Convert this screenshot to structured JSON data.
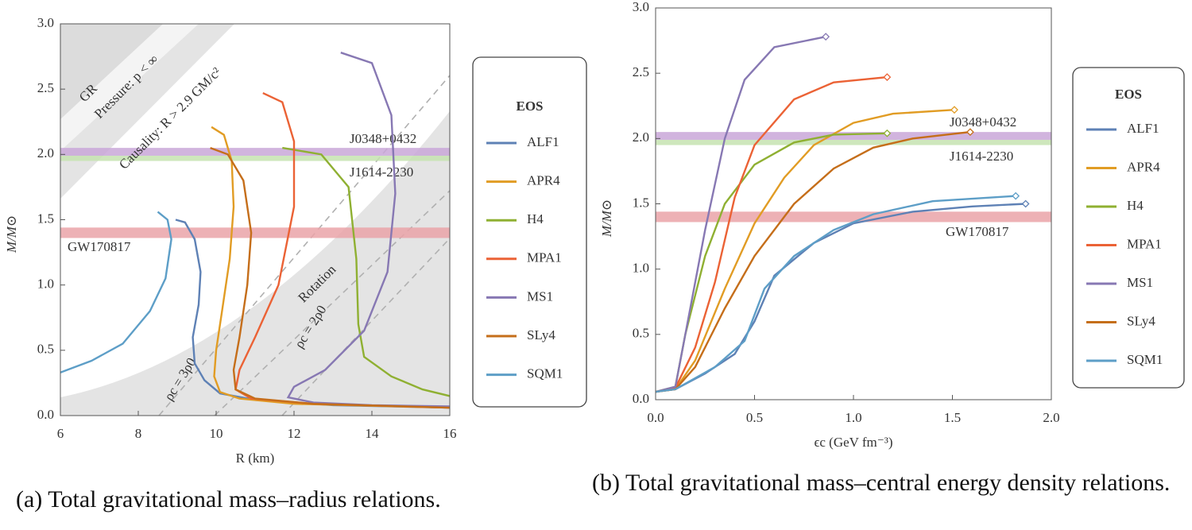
{
  "chart_data": [
    {
      "type": "line",
      "caption": "(a) Total gravitational mass–radius relations.",
      "xlabel": "R (km)",
      "ylabel": "M/M⊙",
      "xlim": [
        6,
        16
      ],
      "ylim": [
        0,
        3
      ],
      "xticks": [
        6,
        8,
        10,
        12,
        14,
        16
      ],
      "yticks": [
        {
          "value": 0,
          "label": "0.0"
        },
        0.5,
        {
          "value": 1,
          "label": "1.0"
        },
        1.5,
        {
          "value": 2,
          "label": "2.0"
        },
        2.5,
        {
          "value": 3,
          "label": "3.0"
        }
      ],
      "legend_title": "EOS",
      "bands": [
        {
          "label": "J0348+0432",
          "range": [
            1.99,
            2.05
          ],
          "color": "#c9a7d8"
        },
        {
          "label": "J1614-2230",
          "range": [
            1.95,
            1.99
          ],
          "color": "#c6e3b0"
        },
        {
          "label": "GW170817",
          "range": [
            1.36,
            1.44
          ],
          "color": "#eaa3a8"
        }
      ],
      "annotations": [
        "GR",
        "Pressure: p < ∞",
        "Causality: R > 2.9 GM/c²",
        "Rotation",
        "ρc = 3ρ0",
        "ρc = 2ρ0"
      ],
      "series": [
        {
          "name": "ALF1",
          "color": "#5E81B5",
          "x": [
            8.96,
            9.2,
            9.45,
            9.6,
            9.55,
            9.4,
            9.45,
            9.7,
            10.1,
            11,
            13,
            16
          ],
          "values": [
            1.5,
            1.48,
            1.35,
            1.1,
            0.85,
            0.6,
            0.4,
            0.27,
            0.17,
            0.12,
            0.08,
            0.06
          ]
        },
        {
          "name": "APR4",
          "color": "#E19C24",
          "x": [
            9.88,
            10.2,
            10.4,
            10.45,
            10.35,
            10.15,
            10.0,
            9.95,
            10.1,
            10.6,
            12,
            16
          ],
          "values": [
            2.21,
            2.15,
            1.95,
            1.6,
            1.2,
            0.8,
            0.5,
            0.3,
            0.18,
            0.13,
            0.09,
            0.06
          ]
        },
        {
          "name": "H4",
          "color": "#8FB032",
          "x": [
            11.7,
            12.7,
            13.4,
            13.6,
            13.65,
            13.8,
            14.5,
            15.3,
            16
          ],
          "values": [
            2.05,
            2.0,
            1.75,
            1.2,
            0.7,
            0.45,
            0.3,
            0.2,
            0.15
          ]
        },
        {
          "name": "MPA1",
          "color": "#EB6235",
          "x": [
            11.2,
            11.7,
            12.0,
            12.0,
            11.6,
            11.0,
            10.6,
            10.5,
            10.9,
            12.5,
            16
          ],
          "values": [
            2.47,
            2.4,
            2.1,
            1.6,
            1.0,
            0.6,
            0.35,
            0.2,
            0.13,
            0.09,
            0.06
          ]
        },
        {
          "name": "MS1",
          "color": "#8778B3",
          "x": [
            13.2,
            14.0,
            14.5,
            14.6,
            14.4,
            13.8,
            12.8,
            12.0,
            11.85,
            12.5,
            14,
            16
          ],
          "values": [
            2.78,
            2.7,
            2.3,
            1.7,
            1.1,
            0.65,
            0.35,
            0.22,
            0.14,
            0.1,
            0.08,
            0.07
          ]
        },
        {
          "name": "SLy4",
          "color": "#C56E1A",
          "x": [
            9.85,
            10.3,
            10.7,
            10.9,
            10.8,
            10.6,
            10.45,
            10.5,
            11,
            12.5,
            16
          ],
          "values": [
            2.05,
            2.0,
            1.8,
            1.4,
            1.0,
            0.6,
            0.35,
            0.2,
            0.13,
            0.09,
            0.06
          ]
        },
        {
          "name": "SQM1",
          "color": "#5D9EC7",
          "x": [
            8.5,
            8.75,
            8.85,
            8.7,
            8.3,
            7.6,
            6.8,
            6
          ],
          "values": [
            1.56,
            1.5,
            1.35,
            1.05,
            0.8,
            0.55,
            0.42,
            0.33
          ]
        }
      ]
    },
    {
      "type": "line",
      "caption": "(b) Total gravitational mass–central energy density relations.",
      "xlabel": "ϵc (GeV fm⁻³)",
      "ylabel": "M/M⊙",
      "xlim": [
        0,
        2
      ],
      "ylim": [
        0,
        3
      ],
      "xticks": [
        {
          "value": 0,
          "label": "0.0"
        },
        0.5,
        {
          "value": 1,
          "label": "1.0"
        },
        1.5,
        {
          "value": 2,
          "label": "2.0"
        }
      ],
      "yticks": [
        {
          "value": 0,
          "label": "0.0"
        },
        0.5,
        {
          "value": 1,
          "label": "1.0"
        },
        1.5,
        {
          "value": 2,
          "label": "2.0"
        },
        2.5,
        {
          "value": 3,
          "label": "3.0"
        }
      ],
      "legend_title": "EOS",
      "bands": [
        {
          "label": "J0348+0432",
          "range": [
            1.99,
            2.05
          ],
          "color": "#c9a7d8"
        },
        {
          "label": "J1614-2230",
          "range": [
            1.95,
            1.99
          ],
          "color": "#c6e3b0"
        },
        {
          "label": "GW170817",
          "range": [
            1.36,
            1.44
          ],
          "color": "#eaa3a8"
        }
      ],
      "series": [
        {
          "name": "ALF1",
          "color": "#5E81B5",
          "x": [
            0,
            0.1,
            0.25,
            0.4,
            0.5,
            0.6,
            0.8,
            1.0,
            1.3,
            1.6,
            1.87
          ],
          "values": [
            0.06,
            0.08,
            0.2,
            0.35,
            0.6,
            0.95,
            1.2,
            1.35,
            1.44,
            1.48,
            1.5
          ]
        },
        {
          "name": "APR4",
          "color": "#E19C24",
          "x": [
            0,
            0.1,
            0.2,
            0.35,
            0.5,
            0.65,
            0.8,
            1.0,
            1.2,
            1.51
          ],
          "values": [
            0.06,
            0.08,
            0.3,
            0.85,
            1.35,
            1.7,
            1.95,
            2.12,
            2.19,
            2.22
          ]
        },
        {
          "name": "H4",
          "color": "#8FB032",
          "x": [
            0,
            0.1,
            0.15,
            0.25,
            0.35,
            0.5,
            0.7,
            0.9,
            1.17
          ],
          "values": [
            0.06,
            0.1,
            0.5,
            1.1,
            1.5,
            1.8,
            1.97,
            2.03,
            2.04
          ]
        },
        {
          "name": "MPA1",
          "color": "#EB6235",
          "x": [
            0,
            0.1,
            0.2,
            0.3,
            0.4,
            0.5,
            0.7,
            0.9,
            1.17
          ],
          "values": [
            0.06,
            0.09,
            0.4,
            0.9,
            1.55,
            1.95,
            2.3,
            2.43,
            2.47
          ]
        },
        {
          "name": "MS1",
          "color": "#8778B3",
          "x": [
            0,
            0.1,
            0.15,
            0.25,
            0.35,
            0.45,
            0.6,
            0.86
          ],
          "values": [
            0.06,
            0.1,
            0.5,
            1.3,
            2.0,
            2.45,
            2.7,
            2.78
          ]
        },
        {
          "name": "SLy4",
          "color": "#C56E1A",
          "x": [
            0,
            0.1,
            0.2,
            0.35,
            0.5,
            0.7,
            0.9,
            1.1,
            1.3,
            1.59
          ],
          "values": [
            0.06,
            0.08,
            0.25,
            0.7,
            1.1,
            1.5,
            1.77,
            1.93,
            2.0,
            2.05
          ]
        },
        {
          "name": "SQM1",
          "color": "#5D9EC7",
          "x": [
            0,
            0.1,
            0.3,
            0.45,
            0.55,
            0.7,
            0.9,
            1.1,
            1.4,
            1.82
          ],
          "values": [
            0.06,
            0.08,
            0.25,
            0.45,
            0.85,
            1.1,
            1.3,
            1.42,
            1.52,
            1.56
          ]
        }
      ]
    }
  ]
}
